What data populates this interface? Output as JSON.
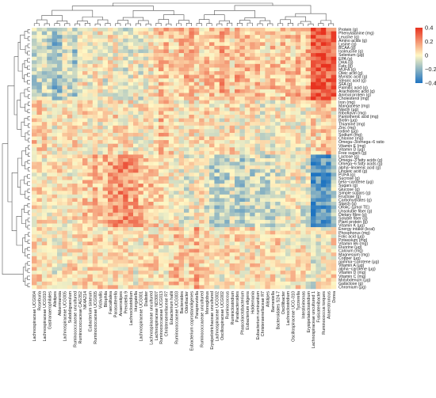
{
  "chart_data": {
    "type": "heatmap",
    "title": "",
    "xlabel": "",
    "ylabel": "",
    "row_labels": [
      "Protein (g)",
      "Phenylalanine (mg)",
      "Leucine (g)",
      "Amino acids (g)",
      "Lysine (g)",
      "BCAA (g)",
      "Isoleucine (g)",
      "Selenium (µg)",
      "EPA (g)",
      "DHA (g)",
      "Fats (g)",
      "MUFA (g)",
      "Oleic acid (g)",
      "Myristic acid (g)",
      "Stearic acid (g)",
      "SFA (g)",
      "Palmitic acid (g)",
      "Arachidonic acid (g)",
      "Animal protein (g)",
      "Cholesterol (mg)",
      "Iron (mg)",
      "Manganese (mg)",
      "Niacin (µg)",
      "Riboflavin (mg)",
      "Pantothenic acid (mg)",
      "Biotin (µg)",
      "Thiamine (mg)",
      "Zinc (mg)",
      "Iodine (µg)",
      "Sodium (mg)",
      "Chlorine (mg)",
      "Omega−3/omega−6 ratio",
      "Vitamin E (mg)",
      "Vitamin D (µg)",
      "Free sugars (g)",
      "Lactose (g)",
      "Omega−3 fatty acids (g)",
      "Omega−6 fatty acids (g)",
      "alpha−linolenic acid (g)",
      "Linoleic acid (g)",
      "PUFA (g)",
      "Sucrose (g)",
      "beta−carotene (µg)",
      "Sugars (g)",
      "Glucose (g)",
      "Simple sugars (g)",
      "Fructose (g)",
      "Carbohydrates (g)",
      "Starch (g)",
      "ORAC (µmol TE)",
      "Unsoluble fiber (g)",
      "Dietary fibre (g)",
      "Soluble fiber (g)",
      "Plant protein (g)",
      "Vitamin K (µg)",
      "Energy intake (kcal)",
      "Phosphorus (mg)",
      "Folic acid (µg)",
      "Potassium (mg)",
      "Vitamin B6 (mg)",
      "Fluorine (µg)",
      "Calcium (mg)",
      "Magnesium (mg)",
      "Copper (µg)",
      "gamma−carotene (µg)",
      "Vitamin A (µg)",
      "alpha−carotene (µg)",
      "Vitamin D (mg)",
      "Vitamin C (mg)",
      "Molybdenum (µg)",
      "Galactose (g)",
      "Chromium (µg)"
    ],
    "col_labels": [
      "Lachnospiraceae UCG004",
      "Roseburia",
      "Lachnospiraceae UCG010",
      "Gastranaerophilales",
      "Alistipes",
      "Akkermansia",
      "Lachnospiraceae UCG005",
      "Subdoligranulum",
      "Ruminococcaceae uncultured",
      "Ruminococcaceae CAG352",
      "NK4A214",
      "Eubacterium siraeum",
      "Ruminococcaceae UCG005",
      "Victivallis",
      "Bilophila",
      "Faecalitalea",
      "Parasutterella",
      "Anaerostipes",
      "Prevotella 9",
      "Lachnoclostridium",
      "Hungatella",
      "Lachnospiraceae UCG001",
      "Dialister",
      "Lachnospiraceae uncultured",
      "Lachnospiraceae ND3007",
      "Ruminococcaceae UCG013",
      "Christensenellaceae R7",
      "Eubacterium hallii",
      "Ruminococcaceae UCG003",
      "Bacteroides",
      "Odoribacter",
      "Eubacterium coprostanoligenes",
      "Paraprevotella",
      "Ruminococcaceae uncultured",
      "Monoglobus",
      "Erysipelotrichaceae uncultured",
      "Lachnospiraceae UCG002",
      "Oscillospiraceae UCG002",
      "Ruminococcus",
      "Ruminiclostridium",
      "Parabacteroides",
      "Phascolarctobacterium",
      "Eubacterium eligens",
      "Holdemania",
      "Eubacterium ruminantium",
      "Christensenellaceae R7",
      "Alistipes",
      "Barnesiella",
      "Bacteroidales S24-7",
      "Oscillibacter",
      "Lachnoclostridium",
      "Oscillospiraceae UCG-010",
      "Tyzzerella",
      "Intestinimonas",
      "Erysipelatoclostridium",
      "Lachnospiraceae uncultured 1",
      "Fusicatenibacter",
      "Ruminococcus torques",
      "Anaerotruncus",
      "Dorea"
    ],
    "colorbar": {
      "min": -0.4,
      "max": 0.4,
      "ticks": [
        0.4,
        0.2,
        0,
        -0.2,
        -0.4
      ],
      "tick_labels": [
        "0.4",
        "0.2",
        "0",
        "−0.2",
        "−0.4"
      ]
    },
    "colors": {
      "high": "#e8321f",
      "mid": "#fff7c4",
      "low": "#1f74c1"
    },
    "row_groups": [
      {
        "rows": [
          0,
          19
        ],
        "profile": "animal"
      },
      {
        "rows": [
          20,
          34
        ],
        "profile": "minerals"
      },
      {
        "rows": [
          35,
          54
        ],
        "profile": "plant"
      },
      {
        "rows": [
          55,
          71
        ],
        "profile": "mixed"
      }
    ],
    "profiles": {
      "animal": [
        -0.12,
        -0.1,
        -0.08,
        -0.12,
        -0.18,
        -0.16,
        -0.05,
        -0.1,
        -0.14,
        -0.02,
        0.02,
        -0.05,
        0.0,
        0.02,
        -0.04,
        0.02,
        0.0,
        -0.02,
        -0.06,
        -0.03,
        0.0,
        -0.05,
        -0.02,
        0.02,
        0.04,
        0.1,
        0.12,
        0.05,
        0.08,
        0.1,
        0.12,
        0.14,
        0.06,
        0.04,
        0.1,
        0.12,
        0.08,
        0.16,
        0.1,
        0.06,
        0.14,
        0.12,
        0.1,
        0.08,
        0.12,
        0.06,
        0.04,
        0.1,
        0.08,
        0.12,
        0.1,
        0.06,
        0.12,
        0.1,
        0.14,
        0.34,
        0.32,
        0.36,
        0.3,
        0.28
      ],
      "minerals": [
        0.08,
        0.06,
        0.05,
        0.02,
        0.0,
        0.04,
        0.02,
        0.04,
        0.06,
        0.03,
        0.05,
        0.02,
        0.04,
        0.0,
        0.02,
        0.04,
        0.06,
        0.02,
        0.04,
        0.02,
        0.0,
        0.02,
        0.04,
        0.03,
        0.02,
        0.12,
        0.1,
        0.06,
        0.04,
        0.02,
        0.0,
        0.05,
        0.02,
        0.04,
        0.06,
        0.03,
        0.02,
        0.0,
        0.04,
        0.06,
        0.02,
        0.0,
        0.02,
        0.04,
        0.0,
        -0.04,
        -0.02,
        0.0,
        0.02,
        0.04,
        0.03,
        0.02,
        0.0,
        -0.02,
        0.02,
        0.06,
        0.04,
        0.08,
        0.1,
        0.06
      ],
      "plant": [
        0.05,
        0.04,
        0.02,
        0.0,
        0.04,
        0.06,
        0.02,
        0.02,
        0.04,
        0.05,
        0.1,
        0.08,
        0.12,
        0.1,
        0.14,
        0.16,
        0.18,
        0.2,
        0.22,
        0.16,
        0.18,
        0.14,
        0.1,
        0.12,
        0.08,
        0.06,
        0.04,
        0.02,
        0.0,
        -0.02,
        -0.04,
        -0.02,
        0.0,
        0.02,
        -0.06,
        -0.1,
        -0.12,
        -0.08,
        -0.1,
        -0.06,
        -0.12,
        -0.14,
        -0.08,
        -0.1,
        -0.06,
        -0.12,
        -0.08,
        -0.1,
        -0.06,
        -0.04,
        -0.02,
        0.0,
        0.02,
        -0.06,
        -0.04,
        -0.32,
        -0.3,
        -0.28,
        -0.3,
        -0.1
      ],
      "mixed": [
        0.04,
        0.06,
        0.02,
        0.0,
        -0.02,
        0.0,
        0.02,
        0.04,
        0.06,
        0.02,
        0.04,
        0.06,
        0.03,
        0.05,
        0.04,
        0.06,
        0.08,
        0.06,
        0.04,
        0.02,
        0.0,
        0.02,
        0.04,
        0.06,
        0.05,
        0.04,
        0.02,
        0.08,
        0.1,
        0.12,
        0.06,
        0.1,
        0.14,
        0.08,
        0.04,
        0.06,
        0.02,
        0.0,
        0.04,
        0.06,
        0.08,
        0.04,
        0.02,
        0.06,
        0.04,
        0.02,
        0.0,
        0.04,
        0.06,
        0.02,
        0.0,
        0.02,
        0.04,
        0.02,
        0.0,
        -0.04,
        -0.02,
        0.0,
        0.02,
        0.04
      ]
    },
    "cell_noise_amplitude": 0.13
  }
}
